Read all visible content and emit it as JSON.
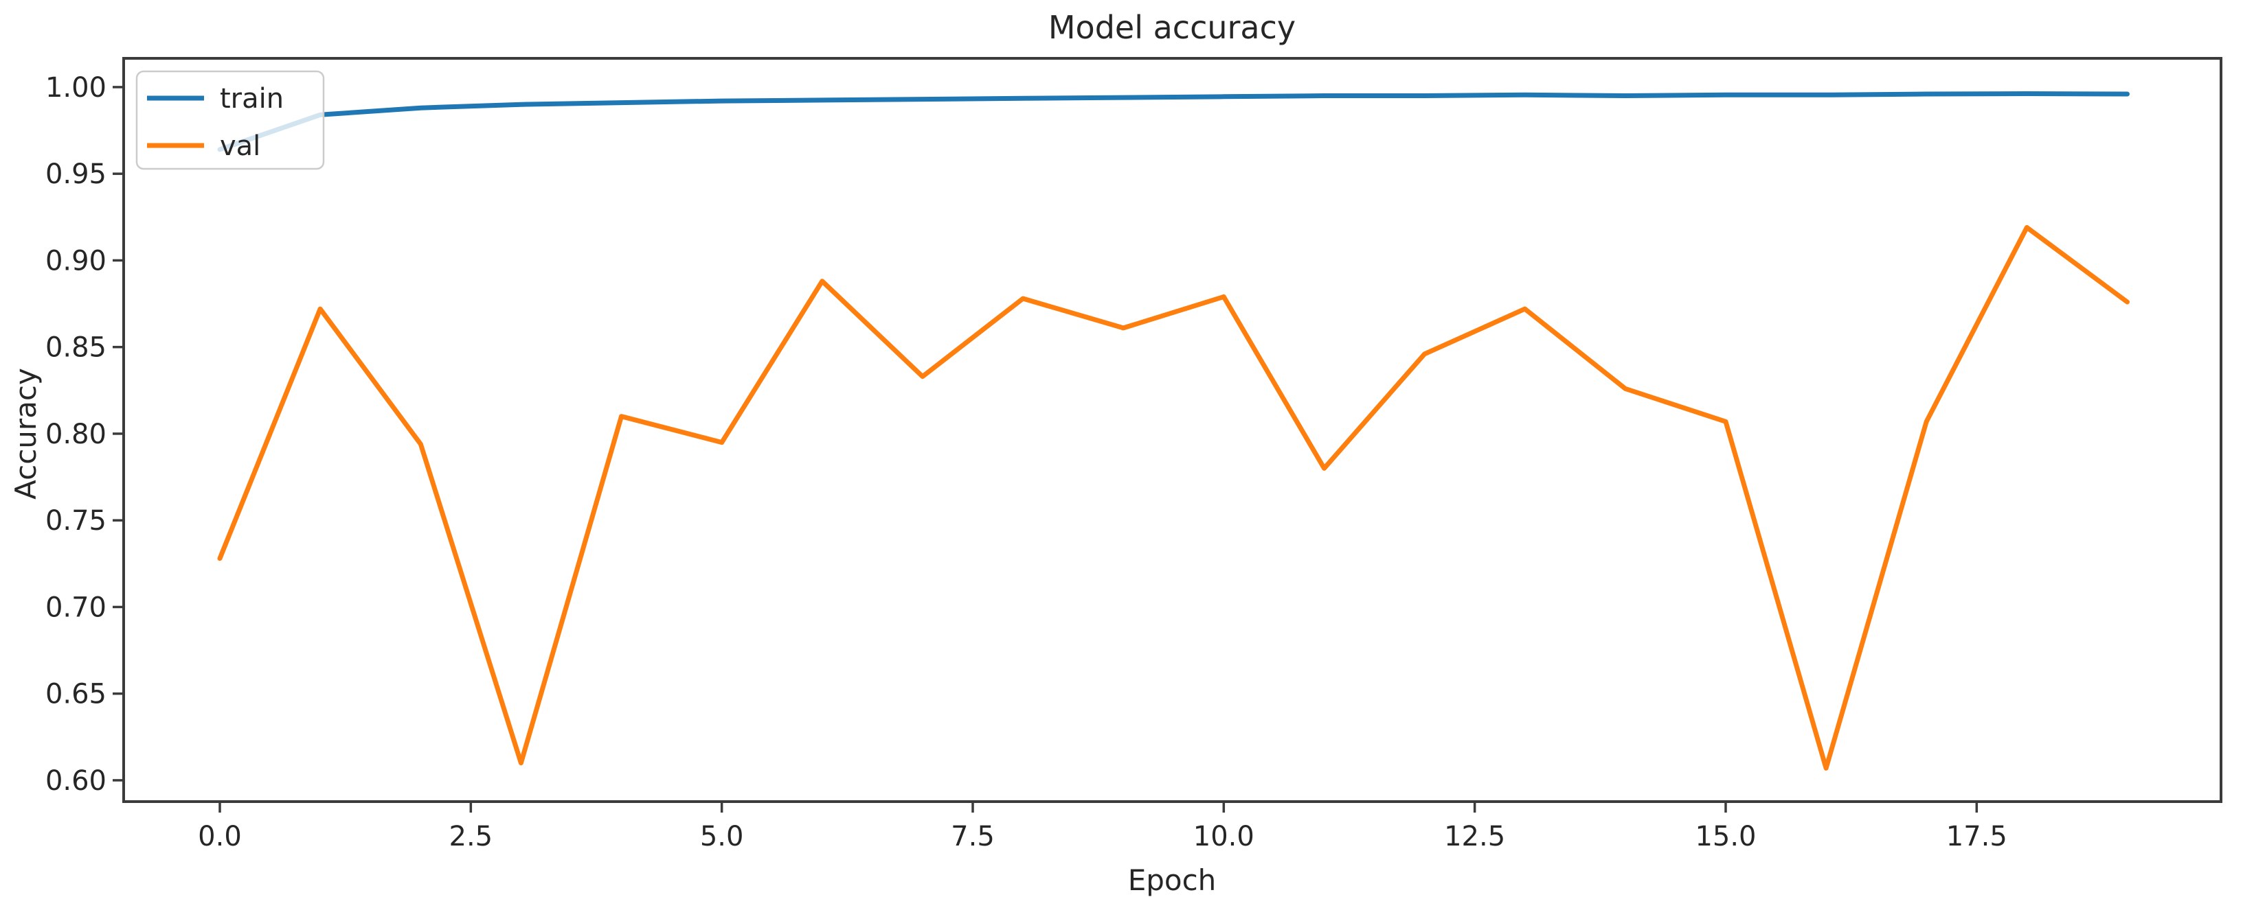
{
  "figure": {
    "title": "Model accuracy",
    "xlabel": "Epoch",
    "ylabel": "Accuracy"
  },
  "legend": {
    "entries": [
      {
        "label": "train",
        "color": "#1f77b4"
      },
      {
        "label": "val",
        "color": "#ff7f0e"
      }
    ]
  },
  "chart_data": {
    "type": "line",
    "title": "Model accuracy",
    "xlabel": "Epoch",
    "ylabel": "Accuracy",
    "x": [
      0,
      1,
      2,
      3,
      4,
      5,
      6,
      7,
      8,
      9,
      10,
      11,
      12,
      13,
      14,
      15,
      16,
      17,
      18,
      19
    ],
    "series": [
      {
        "name": "train",
        "color": "#1f77b4",
        "values": [
          0.964,
          0.984,
          0.988,
          0.99,
          0.991,
          0.992,
          0.9925,
          0.993,
          0.9935,
          0.994,
          0.9945,
          0.995,
          0.995,
          0.9955,
          0.995,
          0.9955,
          0.9955,
          0.996,
          0.9962,
          0.996
        ]
      },
      {
        "name": "val",
        "color": "#ff7f0e",
        "values": [
          0.728,
          0.872,
          0.794,
          0.61,
          0.81,
          0.795,
          0.888,
          0.833,
          0.878,
          0.861,
          0.879,
          0.78,
          0.846,
          0.872,
          0.826,
          0.807,
          0.607,
          0.807,
          0.919,
          0.876
        ]
      }
    ],
    "xlim": [
      -0.958,
      19.934
    ],
    "ylim": [
      0.5877,
      1.0166
    ],
    "xticks": {
      "values": [
        0,
        2.5,
        5,
        7.5,
        10,
        12.5,
        15,
        17.5
      ],
      "labels": [
        "0.0",
        "2.5",
        "5.0",
        "7.5",
        "10.0",
        "12.5",
        "15.0",
        "17.5"
      ]
    },
    "yticks": {
      "values": [
        0.6,
        0.65,
        0.7,
        0.75,
        0.8,
        0.85,
        0.9,
        0.95,
        1.0
      ],
      "labels": [
        "0.60",
        "0.65",
        "0.70",
        "0.75",
        "0.80",
        "0.85",
        "0.90",
        "0.95",
        "1.00"
      ]
    },
    "grid": false,
    "legend_position": "upper-left",
    "line_width": 7,
    "axis_color": "#3b3b3b",
    "background": "#ffffff"
  }
}
